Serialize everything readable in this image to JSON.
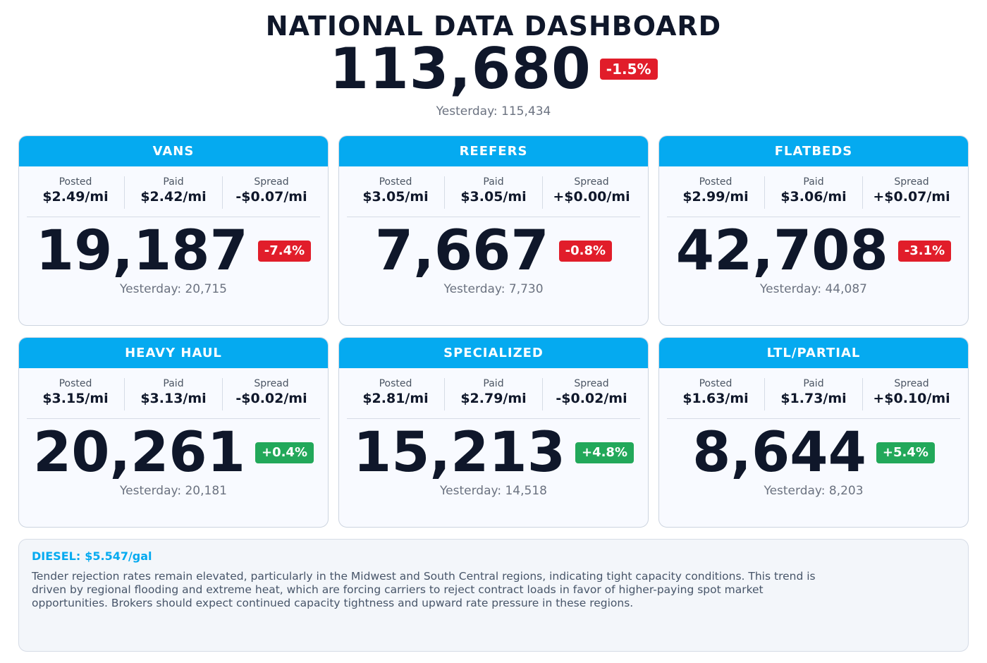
{
  "header": {
    "title": "NATIONAL DATA DASHBOARD",
    "total": "113,680",
    "change": "-1.5%",
    "yesterday": "Yesterday: 115,434"
  },
  "labels": {
    "posted": "Posted",
    "paid": "Paid",
    "spread": "Spread"
  },
  "cards": [
    {
      "name": "VANS",
      "posted": "$2.49/mi",
      "paid": "$2.42/mi",
      "spread": "-$0.07/mi",
      "value": "19,187",
      "change": "-7.4%",
      "trend": "neg",
      "yesterday": "Yesterday: 20,715"
    },
    {
      "name": "REEFERS",
      "posted": "$3.05/mi",
      "paid": "$3.05/mi",
      "spread": "+$0.00/mi",
      "value": "7,667",
      "change": "-0.8%",
      "trend": "neg",
      "yesterday": "Yesterday: 7,730"
    },
    {
      "name": "FLATBEDS",
      "posted": "$2.99/mi",
      "paid": "$3.06/mi",
      "spread": "+$0.07/mi",
      "value": "42,708",
      "change": "-3.1%",
      "trend": "neg",
      "yesterday": "Yesterday: 44,087"
    },
    {
      "name": "HEAVY HAUL",
      "posted": "$3.15/mi",
      "paid": "$3.13/mi",
      "spread": "-$0.02/mi",
      "value": "20,261",
      "change": "+0.4%",
      "trend": "pos",
      "yesterday": "Yesterday: 20,181"
    },
    {
      "name": "SPECIALIZED",
      "posted": "$2.81/mi",
      "paid": "$2.79/mi",
      "spread": "-$0.02/mi",
      "value": "15,213",
      "change": "+4.8%",
      "trend": "pos",
      "yesterday": "Yesterday: 14,518"
    },
    {
      "name": "LTL/PARTIAL",
      "posted": "$1.63/mi",
      "paid": "$1.73/mi",
      "spread": "+$0.10/mi",
      "value": "8,644",
      "change": "+5.4%",
      "trend": "pos",
      "yesterday": "Yesterday: 8,203"
    }
  ],
  "footer": {
    "diesel_label": "DIESEL:",
    "diesel_value": "$5.547/gal",
    "note": "Tender rejection rates remain elevated, particularly in the Midwest and South Central regions, indicating tight capacity conditions. This trend is driven by regional flooding and extreme heat, which are forcing carriers to reject contract loads in favor of higher-paying spot market opportunities. Brokers should expect continued capacity tightness and upward rate pressure in these regions."
  },
  "colors": {
    "accent": "#05aaf0",
    "negative": "#e11d2a",
    "positive": "#22a85a",
    "text": "#0f172a",
    "muted": "#6b7280"
  }
}
